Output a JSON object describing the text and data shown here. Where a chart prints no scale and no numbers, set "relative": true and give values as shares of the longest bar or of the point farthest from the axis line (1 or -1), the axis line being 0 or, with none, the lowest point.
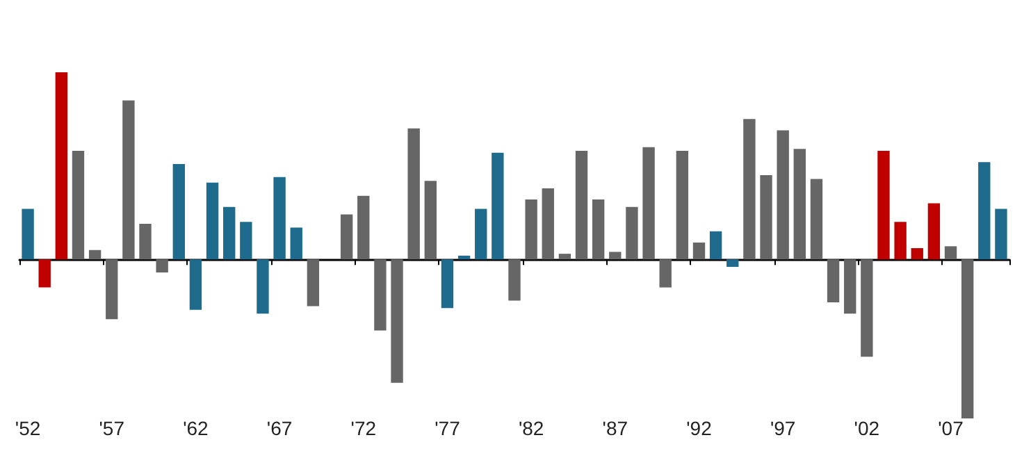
{
  "chart_data": {
    "type": "bar",
    "relative": true,
    "categories": [
      "'52",
      null,
      null,
      null,
      null,
      "'57",
      null,
      null,
      null,
      null,
      "'62",
      null,
      null,
      null,
      null,
      "'67",
      null,
      null,
      null,
      null,
      "'72",
      null,
      null,
      null,
      null,
      "'77",
      null,
      null,
      null,
      null,
      "'82",
      null,
      null,
      null,
      null,
      "'87",
      null,
      null,
      null,
      null,
      "'92",
      null,
      null,
      null,
      null,
      "'97",
      null,
      null,
      null,
      null,
      "'02",
      null,
      null,
      null,
      null,
      "'07",
      null,
      null,
      null
    ],
    "values": [
      0.27,
      -0.15,
      1,
      0.58,
      0.05,
      -0.32,
      0.85,
      0.19,
      -0.07,
      0.51,
      -0.27,
      0.41,
      0.28,
      0.2,
      -0.29,
      0.44,
      0.17,
      -0.25,
      0,
      0.24,
      0.34,
      -0.38,
      -0.66,
      0.7,
      0.42,
      -0.26,
      0.02,
      0.27,
      0.57,
      -0.22,
      0.32,
      0.38,
      0.03,
      0.58,
      0.32,
      0.04,
      0.28,
      0.6,
      -0.15,
      0.58,
      0.09,
      0.15,
      -0.04,
      0.75,
      0.45,
      0.69,
      0.59,
      0.43,
      -0.23,
      -0.29,
      -0.52,
      0.58,
      0.2,
      0.06,
      0.3,
      0.07,
      -0.85,
      0.52,
      0.27
    ],
    "colors": [
      "#1f6b8e",
      "#c00000",
      "#c00000",
      "#666666",
      "#666666",
      "#666666",
      "#666666",
      "#666666",
      "#666666",
      "#1f6b8e",
      "#1f6b8e",
      "#1f6b8e",
      "#1f6b8e",
      "#1f6b8e",
      "#1f6b8e",
      "#1f6b8e",
      "#1f6b8e",
      "#666666",
      "#666666",
      "#666666",
      "#666666",
      "#666666",
      "#666666",
      "#666666",
      "#666666",
      "#1f6b8e",
      "#1f6b8e",
      "#1f6b8e",
      "#1f6b8e",
      "#666666",
      "#666666",
      "#666666",
      "#666666",
      "#666666",
      "#666666",
      "#666666",
      "#666666",
      "#666666",
      "#666666",
      "#666666",
      "#666666",
      "#1f6b8e",
      "#1f6b8e",
      "#666666",
      "#666666",
      "#666666",
      "#666666",
      "#666666",
      "#666666",
      "#666666",
      "#666666",
      "#c00000",
      "#c00000",
      "#c00000",
      "#c00000",
      "#666666",
      "#666666",
      "#1f6b8e",
      "#1f6b8e"
    ]
  }
}
